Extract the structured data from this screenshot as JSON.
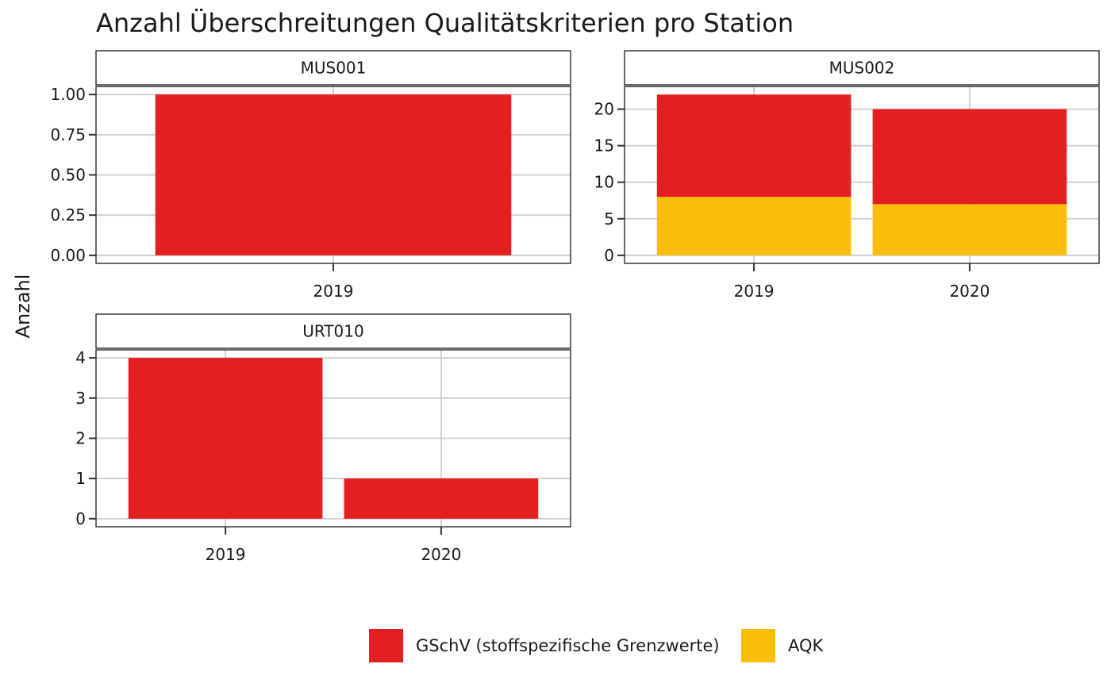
{
  "chart_data": {
    "type": "bar",
    "stacked": true,
    "title": "Anzahl Überschreitungen Qualitätskriterien pro Station",
    "ylabel": "Anzahl",
    "xlabel": "",
    "grid": true,
    "legend": {
      "position": "bottom",
      "entries": [
        {
          "name": "GSchV (stoffspezifische Grenzwerte)",
          "color": "#E41F21"
        },
        {
          "name": "AQK",
          "color": "#FABE09"
        }
      ]
    },
    "facets": [
      {
        "label": "MUS001",
        "categories": [
          "2019"
        ],
        "ylim": [
          -0.05,
          1.05
        ],
        "yticks": [
          0,
          0.25,
          0.5,
          0.75,
          1
        ],
        "ytick_labels": [
          "0.00",
          "0.25",
          "0.50",
          "0.75",
          "1.00"
        ],
        "series": [
          {
            "name": "AQK",
            "values": [
              0
            ]
          },
          {
            "name": "GSchV (stoffspezifische Grenzwerte)",
            "values": [
              1
            ]
          }
        ]
      },
      {
        "label": "MUS002",
        "categories": [
          "2019",
          "2020"
        ],
        "ylim": [
          -1.1,
          23.1
        ],
        "yticks": [
          0,
          5,
          10,
          15,
          20
        ],
        "ytick_labels": [
          "0",
          "5",
          "10",
          "15",
          "20"
        ],
        "series": [
          {
            "name": "AQK",
            "values": [
              8,
              7
            ]
          },
          {
            "name": "GSchV (stoffspezifische Grenzwerte)",
            "values": [
              14,
              13
            ]
          }
        ]
      },
      {
        "label": "URT010",
        "categories": [
          "2019",
          "2020"
        ],
        "ylim": [
          -0.2,
          4.2
        ],
        "yticks": [
          0,
          1,
          2,
          3,
          4
        ],
        "ytick_labels": [
          "0",
          "1",
          "2",
          "3",
          "4"
        ],
        "series": [
          {
            "name": "AQK",
            "values": [
              0,
              0
            ]
          },
          {
            "name": "GSchV (stoffspezifische Grenzwerte)",
            "values": [
              4,
              1
            ]
          }
        ]
      }
    ]
  }
}
